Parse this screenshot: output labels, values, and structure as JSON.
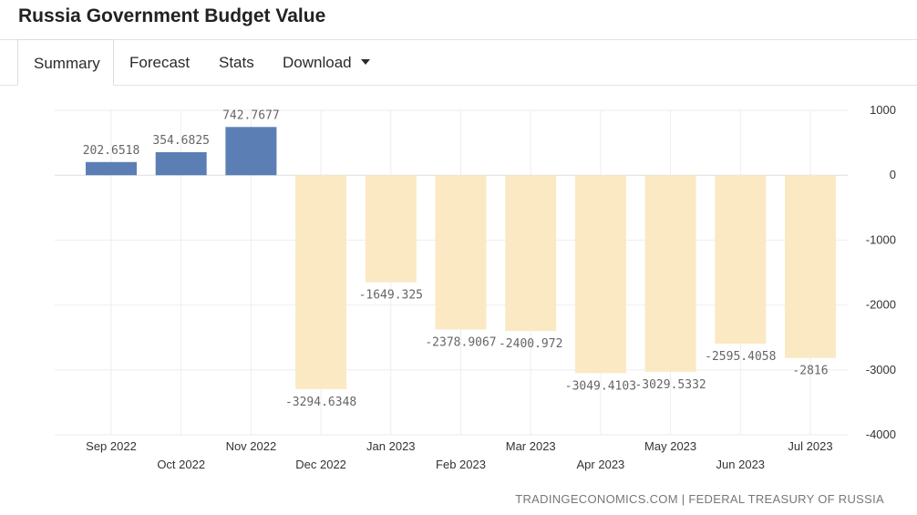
{
  "header": {
    "title": "Russia Government Budget Value"
  },
  "tabs": [
    {
      "label": "Summary",
      "active": true
    },
    {
      "label": "Forecast",
      "active": false
    },
    {
      "label": "Stats",
      "active": false
    },
    {
      "label": "Download",
      "active": false,
      "dropdown": true
    }
  ],
  "source": "TRADINGECONOMICS.COM | FEDERAL TREASURY OF RUSSIA",
  "colors": {
    "positive": "#5b7fb5",
    "negative": "#fbe9c4",
    "grid": "#eeeeee",
    "zero_line": "#dddddd"
  },
  "chart_data": {
    "type": "bar",
    "categories": [
      "Sep 2022",
      "Oct 2022",
      "Nov 2022",
      "Dec 2022",
      "Jan 2023",
      "Feb 2023",
      "Mar 2023",
      "Apr 2023",
      "May 2023",
      "Jun 2023",
      "Jul 2023"
    ],
    "values": [
      202.6518,
      354.6825,
      742.7677,
      -3294.6348,
      -1649.325,
      -2378.9067,
      -2400.972,
      -3049.4103,
      -3029.5332,
      -2595.4058,
      -2816
    ],
    "value_labels": [
      "202.6518",
      "354.6825",
      "742.7677",
      "-3294.6348",
      "-1649.325",
      "-2378.9067",
      "-2400.972",
      "-3049.4103",
      "-3029.5332",
      "-2595.4058",
      "-2816"
    ],
    "y_ticks": [
      "1000",
      "0",
      "-1000",
      "-2000",
      "-3000",
      "-4000"
    ],
    "ylim": [
      -4000,
      1000
    ],
    "y_axis_side": "right",
    "grid": true
  }
}
